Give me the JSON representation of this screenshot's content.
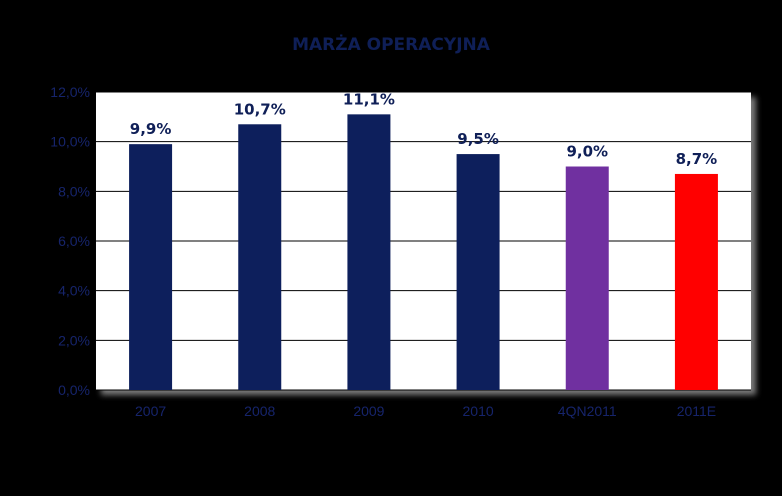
{
  "chart_data": {
    "type": "bar",
    "title": "MARŻA OPERACYJNA",
    "xlabel": "",
    "ylabel": "",
    "categories": [
      "2007",
      "2008",
      "2009",
      "2010",
      "4QN2011",
      "2011E"
    ],
    "values": [
      9.9,
      10.7,
      11.1,
      9.5,
      9.0,
      8.7
    ],
    "data_labels": [
      "9,9%",
      "10,7%",
      "11,1%",
      "9,5%",
      "9,0%",
      "8,7%"
    ],
    "bar_colors": [
      "#0d1f5c",
      "#0d1f5c",
      "#0d1f5c",
      "#0d1f5c",
      "#7030a0",
      "#ff0000"
    ],
    "ylim": [
      0,
      12
    ],
    "yticks": [
      0,
      2,
      4,
      6,
      8,
      10,
      12
    ],
    "ytick_labels": [
      "0,0%",
      "2,0%",
      "4,0%",
      "6,0%",
      "8,0%",
      "10,0%",
      "12,0%"
    ],
    "grid": true,
    "legend": "none",
    "colors": {
      "background": "#000000",
      "plot_background": "#ffffff",
      "title": "#0f1f57",
      "tick_text": "#16246b",
      "gridline": "#000000"
    }
  }
}
